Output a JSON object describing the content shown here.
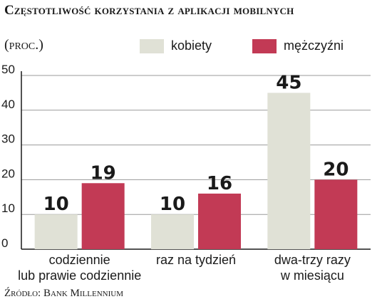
{
  "header": {
    "title": "Częstotliwość korzystania z aplikacji mobilnych",
    "unit": "(proc.)"
  },
  "legend": [
    {
      "label": "kobiety",
      "color": "#e0e1d6"
    },
    {
      "label": "mężczyźni",
      "color": "#c23a55"
    }
  ],
  "source": "Źródło: Bank Millennium",
  "chart_data": {
    "type": "bar",
    "title": "Częstotliwość korzystania z aplikacji mobilnych",
    "ylabel": "(proc.)",
    "xlabel": "",
    "ylim": [
      0,
      50
    ],
    "yticks": [
      "0",
      "10",
      "20",
      "30",
      "40",
      "50"
    ],
    "grid": true,
    "legend_position": "top",
    "categories": [
      [
        "codziennie",
        "lub prawie codziennie"
      ],
      [
        "raz na tydzień"
      ],
      [
        "dwa-trzy razy",
        "w miesiącu"
      ]
    ],
    "series": [
      {
        "name": "kobiety",
        "color": "#e0e1d6",
        "values": [
          10,
          10,
          45
        ]
      },
      {
        "name": "mężczyźni",
        "color": "#c23a55",
        "values": [
          19,
          16,
          20
        ]
      }
    ]
  }
}
